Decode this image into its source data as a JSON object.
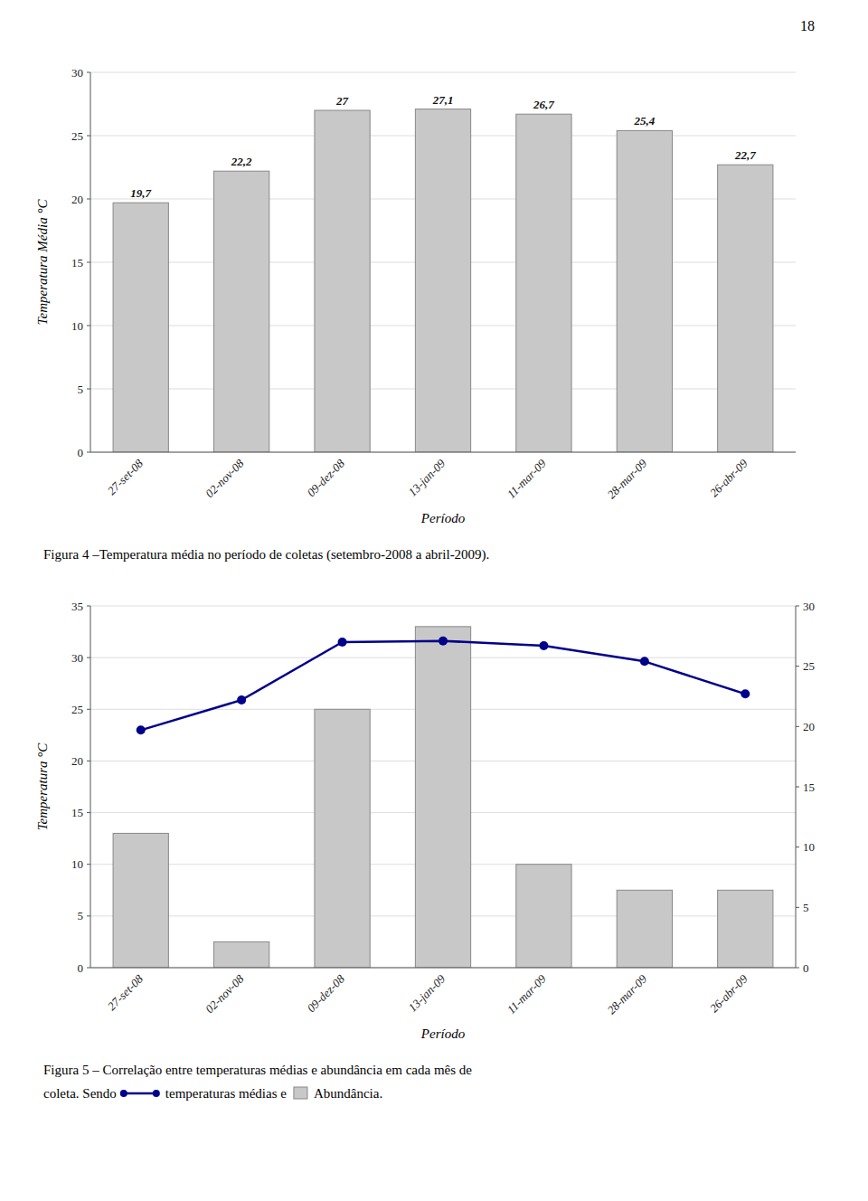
{
  "page_number": "18",
  "chart_data": [
    {
      "type": "bar",
      "categories": [
        "27-set-08",
        "02-nov-08",
        "09-dez-08",
        "13-jan-09",
        "11-mar-09",
        "28-mar-09",
        "26-abr-09"
      ],
      "values": [
        19.7,
        22.2,
        27.0,
        27.1,
        26.7,
        25.4,
        22.7
      ],
      "value_labels": [
        "19,7",
        "22,2",
        "27",
        "27,1",
        "26,7",
        "25,4",
        "22,7"
      ],
      "data_labels": true,
      "color": "#c8c8c8",
      "ylabel": "Temperatura Média °C",
      "xlabel": "Período",
      "ylim": [
        0,
        30
      ],
      "yticks": [
        0,
        5,
        10,
        15,
        20,
        25,
        30
      ],
      "grid": true,
      "caption": "Figura 4 –Temperatura média no período de coletas (setembro-2008 a abril-2009)."
    },
    {
      "type": "bar",
      "categories": [
        "27-set-08",
        "02-nov-08",
        "09-dez-08",
        "13-jan-09",
        "11-mar-09",
        "28-mar-09",
        "26-abr-09"
      ],
      "series": [
        {
          "type": "bar",
          "color": "#c8c8c8",
          "values": [
            13,
            2.5,
            25,
            33,
            10,
            7.5,
            7.5
          ]
        },
        {
          "type": "line",
          "axis": "y2",
          "color": "#00008B",
          "marker": "circle",
          "values": [
            19.7,
            22.2,
            27.0,
            27.1,
            26.7,
            25.4,
            22.7
          ]
        }
      ],
      "ylabel": "Temperatura °C",
      "xlabel": "Período",
      "ylim": [
        0,
        35
      ],
      "yticks": [
        0,
        5,
        10,
        15,
        20,
        25,
        30,
        35
      ],
      "y2lim": [
        0,
        30
      ],
      "y2ticks": [
        0,
        5,
        10,
        15,
        20,
        25,
        30
      ],
      "grid": true,
      "caption": [
        "Figura 5 – Correlação entre temperaturas médias e abundância em cada mês de",
        "coleta. Sendo",
        "temperaturas médias e",
        "Abundância."
      ]
    }
  ]
}
